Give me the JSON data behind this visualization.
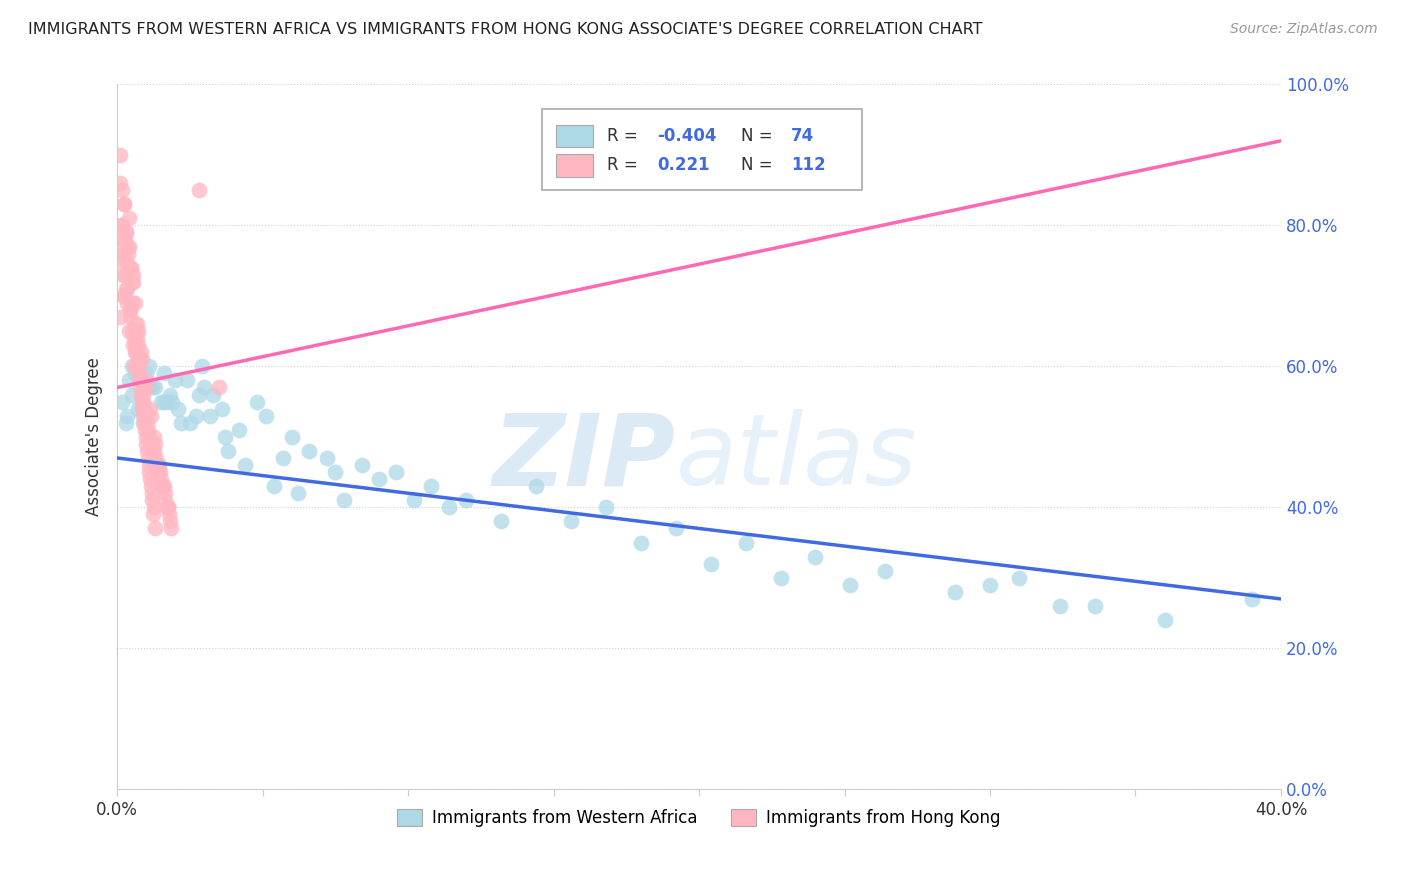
{
  "title": "IMMIGRANTS FROM WESTERN AFRICA VS IMMIGRANTS FROM HONG KONG ASSOCIATE'S DEGREE CORRELATION CHART",
  "source": "Source: ZipAtlas.com",
  "ylabel": "Associate's Degree",
  "r_blue": -0.404,
  "n_blue": 74,
  "r_pink": 0.221,
  "n_pink": 112,
  "legend_blue": "Immigrants from Western Africa",
  "legend_pink": "Immigrants from Hong Kong",
  "xlim": [
    0.0,
    40.0
  ],
  "ylim": [
    0.0,
    100.0
  ],
  "blue_scatter_x": [
    0.3,
    0.5,
    0.4,
    0.7,
    0.8,
    1.0,
    1.2,
    1.5,
    0.9,
    1.1,
    1.8,
    2.1,
    2.4,
    2.7,
    3.0,
    1.6,
    1.9,
    2.2,
    3.3,
    3.6,
    4.2,
    4.8,
    5.1,
    6.0,
    6.6,
    7.2,
    8.4,
    9.6,
    10.8,
    12.0,
    14.4,
    16.8,
    19.2,
    21.6,
    24.0,
    26.4,
    30.0,
    33.6,
    36.0,
    39.0,
    0.15,
    0.35,
    0.6,
    0.85,
    1.3,
    1.7,
    2.0,
    2.5,
    2.9,
    3.2,
    3.8,
    4.4,
    5.4,
    6.2,
    7.8,
    9.0,
    10.2,
    13.2,
    15.6,
    18.0,
    20.4,
    22.8,
    25.2,
    28.8,
    32.4,
    0.5,
    1.1,
    1.6,
    2.8,
    3.7,
    5.7,
    7.5,
    11.4,
    31.0
  ],
  "blue_scatter_y": [
    52,
    56,
    58,
    54,
    61,
    59,
    57,
    55,
    52,
    60,
    56,
    54,
    58,
    53,
    57,
    59,
    55,
    52,
    56,
    54,
    51,
    55,
    53,
    50,
    48,
    47,
    46,
    45,
    43,
    41,
    43,
    40,
    37,
    35,
    33,
    31,
    29,
    26,
    24,
    27,
    55,
    53,
    59,
    54,
    57,
    55,
    58,
    52,
    60,
    53,
    48,
    46,
    43,
    42,
    41,
    44,
    41,
    38,
    38,
    35,
    32,
    30,
    29,
    28,
    26,
    60,
    57,
    55,
    56,
    50,
    47,
    45,
    40,
    30
  ],
  "pink_scatter_x": [
    0.1,
    0.15,
    0.1,
    0.2,
    0.18,
    0.25,
    0.22,
    0.3,
    0.28,
    0.35,
    0.32,
    0.4,
    0.38,
    0.45,
    0.42,
    0.5,
    0.48,
    0.55,
    0.52,
    0.6,
    0.58,
    0.65,
    0.62,
    0.7,
    0.68,
    0.75,
    0.72,
    0.8,
    0.78,
    0.85,
    0.82,
    0.9,
    0.88,
    0.95,
    0.92,
    1.0,
    0.98,
    1.05,
    1.02,
    1.1,
    1.08,
    1.15,
    1.12,
    1.2,
    1.18,
    1.25,
    1.22,
    1.3,
    0.1,
    0.25,
    0.4,
    0.55,
    0.7,
    0.85,
    1.0,
    1.15,
    1.3,
    1.45,
    1.6,
    1.75,
    0.15,
    0.3,
    0.45,
    0.6,
    0.75,
    0.9,
    1.05,
    1.2,
    1.35,
    1.5,
    1.65,
    1.8,
    0.12,
    0.28,
    0.43,
    0.58,
    0.73,
    0.88,
    1.03,
    1.18,
    1.33,
    1.48,
    1.63,
    1.78,
    0.2,
    0.35,
    0.5,
    0.65,
    0.8,
    0.95,
    1.1,
    1.25,
    1.4,
    1.55,
    1.7,
    1.85,
    0.08,
    0.23,
    0.38,
    0.53,
    0.68,
    0.83,
    0.98,
    1.13,
    1.28,
    1.43,
    1.58,
    1.73,
    0.17,
    0.32,
    0.47,
    0.62,
    3.5,
    2.8
  ],
  "pink_scatter_y": [
    67,
    80,
    86,
    73,
    77,
    70,
    83,
    75,
    78,
    71,
    79,
    65,
    76,
    68,
    81,
    69,
    74,
    63,
    72,
    66,
    60,
    65,
    62,
    61,
    64,
    59,
    63,
    57,
    58,
    55,
    56,
    53,
    54,
    51,
    52,
    49,
    50,
    47,
    48,
    45,
    46,
    43,
    44,
    42,
    41,
    40,
    39,
    37,
    75,
    70,
    77,
    73,
    65,
    61,
    57,
    53,
    49,
    45,
    43,
    40,
    78,
    71,
    67,
    63,
    59,
    55,
    51,
    48,
    46,
    44,
    41,
    38,
    80,
    73,
    68,
    64,
    60,
    56,
    52,
    49,
    47,
    45,
    42,
    39,
    76,
    69,
    65,
    62,
    58,
    54,
    50,
    48,
    46,
    43,
    40,
    37,
    90,
    83,
    77,
    72,
    66,
    62,
    58,
    54,
    50,
    46,
    43,
    40,
    85,
    79,
    74,
    69,
    57,
    85
  ],
  "blue_line_x": [
    0.0,
    40.0
  ],
  "blue_line_y": [
    47.0,
    27.0
  ],
  "pink_line_x": [
    0.0,
    40.0
  ],
  "pink_line_y": [
    57.0,
    92.0
  ],
  "ytick_values": [
    0,
    20,
    40,
    60,
    80,
    100
  ],
  "xtick_values": [
    0,
    5,
    10,
    15,
    20,
    25,
    30,
    35,
    40
  ],
  "blue_color": "#ADD8E6",
  "pink_color": "#FFB6C1",
  "blue_line_color": "#4169E1",
  "pink_line_color": "#FF69B4",
  "grid_color": "#CCCCCC",
  "legend_text_color": "#4169E1",
  "r_pink_color": "#4169E1"
}
